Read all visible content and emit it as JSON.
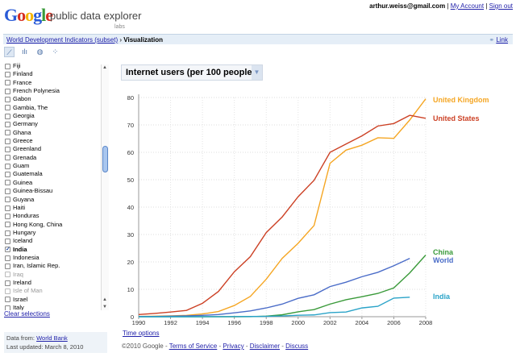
{
  "header": {
    "logo": "Google",
    "product": "public data explorer",
    "labs": "labs",
    "email": "arthur.weiss@gmail.com",
    "my_account": "My Account",
    "sign_out": "Sign out",
    "sep": "|"
  },
  "breadcrumb": {
    "dataset": "World Development Indicators (subset)",
    "sep": "›",
    "current": "Visualization",
    "link": "Link"
  },
  "toolbar": {
    "icons": [
      "line-chart-icon",
      "bar-chart-icon",
      "map-icon",
      "bubble-chart-icon"
    ]
  },
  "countries": [
    {
      "name": "Fiji",
      "checked": false
    },
    {
      "name": "Finland",
      "checked": false
    },
    {
      "name": "France",
      "checked": false
    },
    {
      "name": "French Polynesia",
      "checked": false
    },
    {
      "name": "Gabon",
      "checked": false
    },
    {
      "name": "Gambia, The",
      "checked": false
    },
    {
      "name": "Georgia",
      "checked": false
    },
    {
      "name": "Germany",
      "checked": false
    },
    {
      "name": "Ghana",
      "checked": false
    },
    {
      "name": "Greece",
      "checked": false
    },
    {
      "name": "Greenland",
      "checked": false
    },
    {
      "name": "Grenada",
      "checked": false
    },
    {
      "name": "Guam",
      "checked": false
    },
    {
      "name": "Guatemala",
      "checked": false
    },
    {
      "name": "Guinea",
      "checked": false
    },
    {
      "name": "Guinea-Bissau",
      "checked": false
    },
    {
      "name": "Guyana",
      "checked": false
    },
    {
      "name": "Haiti",
      "checked": false
    },
    {
      "name": "Honduras",
      "checked": false
    },
    {
      "name": "Hong Kong, China",
      "checked": false
    },
    {
      "name": "Hungary",
      "checked": false
    },
    {
      "name": "Iceland",
      "checked": false
    },
    {
      "name": "India",
      "checked": true
    },
    {
      "name": "Indonesia",
      "checked": false
    },
    {
      "name": "Iran, Islamic Rep.",
      "checked": false
    },
    {
      "name": "Iraq",
      "checked": false,
      "disabled": true
    },
    {
      "name": "Ireland",
      "checked": false
    },
    {
      "name": "Isle of Man",
      "checked": false,
      "disabled": true
    },
    {
      "name": "Israel",
      "checked": false
    },
    {
      "name": "Italy",
      "checked": false
    }
  ],
  "sidebar": {
    "clear": "Clear selections",
    "data_from_label": "Data from:",
    "data_from": "World Bank",
    "updated": "Last updated: March 8, 2010"
  },
  "indicator": "Internet users (per 100 people)",
  "time_options": "Time options",
  "footer": {
    "copyright": "©2010 Google",
    "links": [
      "Terms of Service",
      "Privacy",
      "Disclaimer",
      "Discuss"
    ],
    "sep": " - "
  },
  "chart_data": {
    "type": "line",
    "title": "Internet users (per 100 people)",
    "x": [
      1990,
      1991,
      1992,
      1993,
      1994,
      1995,
      1996,
      1997,
      1998,
      1999,
      2000,
      2001,
      2002,
      2003,
      2004,
      2005,
      2006,
      2007,
      2008
    ],
    "xticks": [
      "1990",
      "1992",
      "1994",
      "1996",
      "1998",
      "2000",
      "2002",
      "2004",
      "2006",
      "2008"
    ],
    "yticks": [
      "0",
      "10",
      "20",
      "30",
      "40",
      "50",
      "60",
      "70",
      "80"
    ],
    "ylim": [
      0,
      80
    ],
    "grid": true,
    "legend": "right-end labels",
    "series": [
      {
        "name": "United Kingdom",
        "color": "#f5a623",
        "values": [
          0.1,
          0.2,
          0.3,
          0.5,
          1,
          1.9,
          4.1,
          7.4,
          13.7,
          21.3,
          26.8,
          33.3,
          56,
          60.8,
          62.6,
          65.3,
          65.1,
          71.8,
          79.5
        ]
      },
      {
        "name": "United States",
        "color": "#cc4125",
        "values": [
          0.8,
          1.2,
          1.7,
          2.3,
          4.9,
          9.2,
          16.4,
          21.9,
          30.7,
          36.4,
          43.8,
          49.8,
          60,
          63,
          66,
          69.6,
          70.5,
          73.5,
          72.4
        ]
      },
      {
        "name": "China",
        "color": "#3a9a3a",
        "values": [
          0,
          0,
          0,
          0,
          0,
          0,
          0,
          0.03,
          0.2,
          0.7,
          1.8,
          2.6,
          4.6,
          6.2,
          7.3,
          8.5,
          10.5,
          16,
          22.5
        ]
      },
      {
        "name": "World",
        "color": "#4a6cc8",
        "values": [
          0.05,
          0.1,
          0.2,
          0.3,
          0.5,
          0.8,
          1.4,
          2.1,
          3.2,
          4.6,
          6.7,
          8,
          11,
          12.6,
          14.6,
          16.2,
          18.6,
          21.3,
          null
        ]
      },
      {
        "name": "India",
        "color": "#2aa3c8",
        "values": [
          0,
          0,
          0,
          0,
          0,
          0.03,
          0.05,
          0.07,
          0.14,
          0.27,
          0.53,
          0.66,
          1.5,
          1.7,
          3.2,
          3.8,
          6.8,
          7.1,
          null
        ]
      }
    ]
  }
}
